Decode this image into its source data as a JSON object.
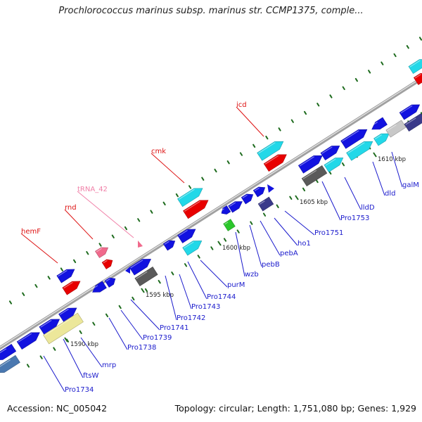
{
  "header": {
    "title": "Prochlorococcus marinus subsp. marinus str. CCMP1375, comple..."
  },
  "footer": {
    "accession": "Accession: NC_005042",
    "summary": "Topology: circular; Length: 1,751,080 bp; Genes: 1,929"
  },
  "map": {
    "backbone_color": "#a0a0a0",
    "tick_color": "#1e6b1e",
    "kbp_ticks": [
      "1590 kbp",
      "1595 kbp",
      "1600 kbp",
      "1605 kbp",
      "1610 kbp"
    ],
    "feature_colors": {
      "cds_blue": "#1212e0",
      "highlight_cyan": "#22d8e8",
      "red_named": "#e80000",
      "pink_trna": "#f06a8c",
      "grey": "#5a5a5a",
      "yellow": "#ece79a",
      "purple": "#3a3a8a",
      "green": "#2cc72c",
      "steelblue": "#4a78b0",
      "lightgrey": "#c8c8c8"
    },
    "label_colors": {
      "red": "#dd1111",
      "pink": "#f080a8",
      "blue": "#1a1acc"
    },
    "upper_gene_labels": [
      "hemF",
      "rnd",
      "tRNA_42",
      "cmk",
      "icd"
    ],
    "lower_gene_labels": [
      "Pro1734",
      "ftsW",
      "mrp",
      "Pro1738",
      "Pro1739",
      "Pro1741",
      "Pro1742",
      "Pro1743",
      "Pro1744",
      "purM",
      "wzb",
      "pebB",
      "pebA",
      "ho1",
      "Pro1751",
      "Pro1753",
      "lldD",
      "dld",
      "galM"
    ]
  }
}
